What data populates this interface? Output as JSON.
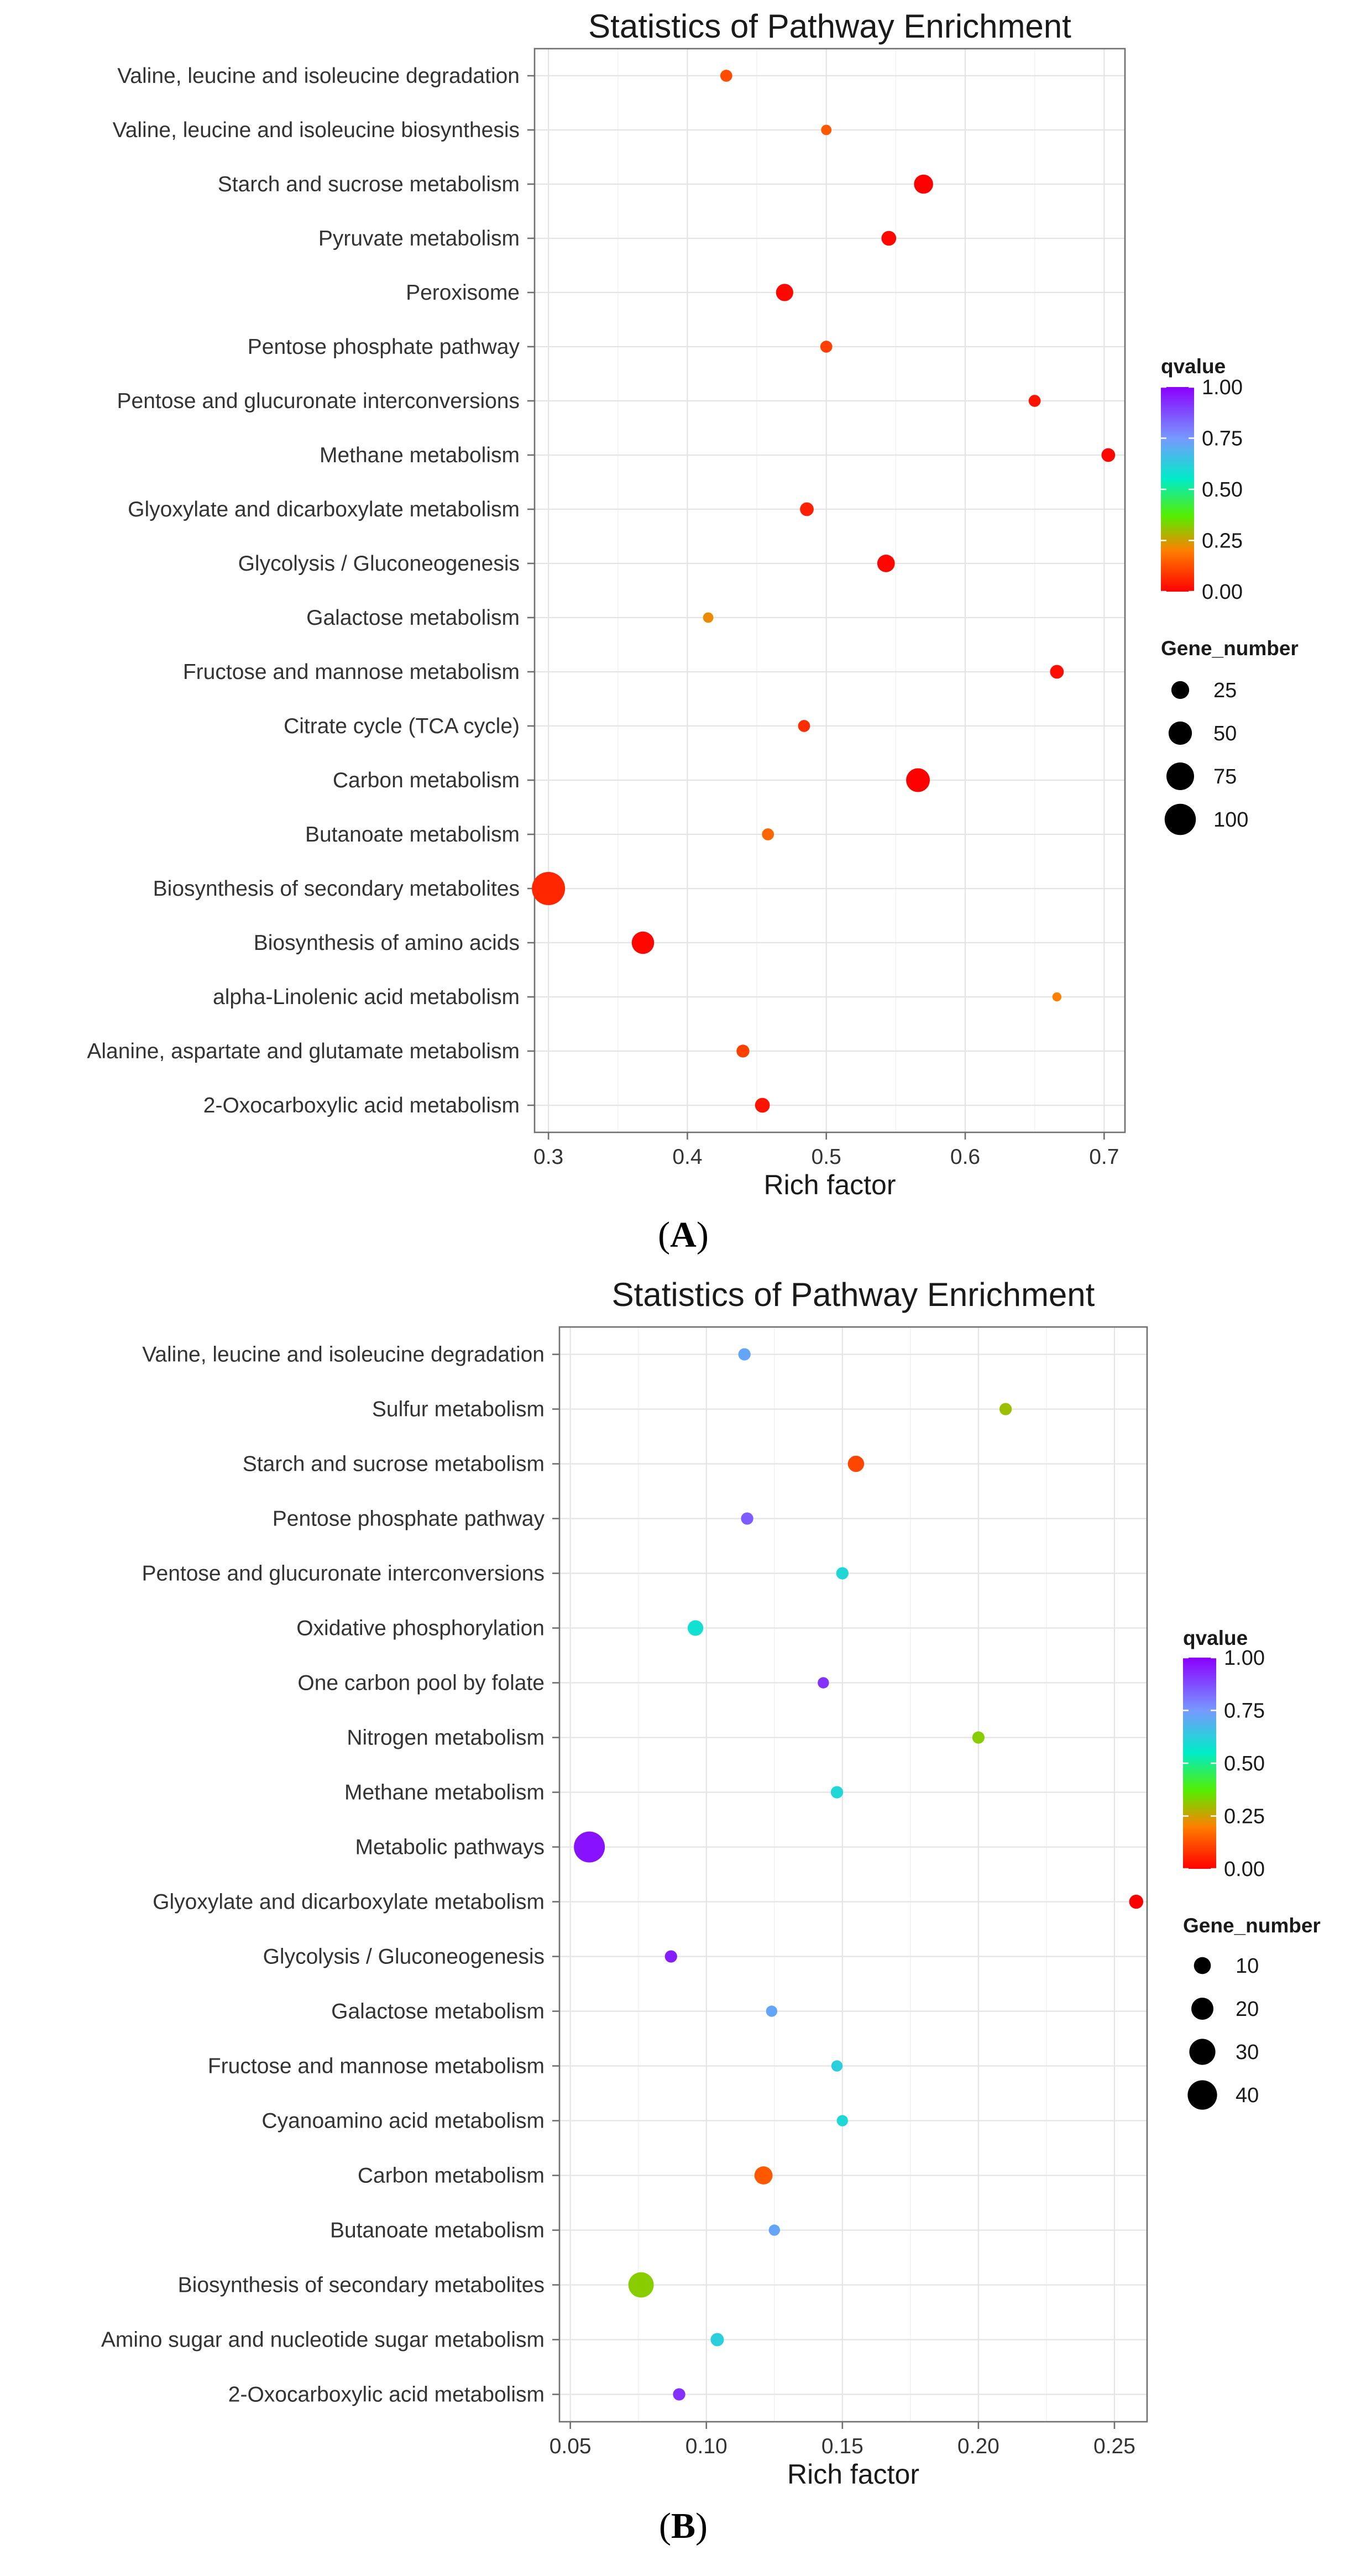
{
  "chart_data": [
    {
      "type": "scatter",
      "title": "Statistics of Pathway Enrichment",
      "xlabel": "Rich factor",
      "xlim": [
        0.29,
        0.715
      ],
      "xticks": [
        0.3,
        0.4,
        0.5,
        0.6,
        0.7
      ],
      "xtick_labels": [
        "0.3",
        "0.4",
        "0.5",
        "0.6",
        "0.7"
      ],
      "color_legend": {
        "title": "qvalue",
        "range": [
          0,
          1
        ],
        "labels": [
          "1.00",
          "0.75",
          "0.50",
          "0.25",
          "0.00"
        ]
      },
      "size_legend": {
        "title": "Gene_number",
        "values": [
          25,
          50,
          75,
          100
        ],
        "labels": [
          "25",
          "50",
          "75",
          "100"
        ]
      },
      "panel_label": "A",
      "points": [
        {
          "pathway": "Valine, leucine and isoleucine degradation",
          "rich_factor": 0.428,
          "qvalue": 0.12,
          "gene_number": 8
        },
        {
          "pathway": "Valine, leucine and isoleucine biosynthesis",
          "rich_factor": 0.5,
          "qvalue": 0.14,
          "gene_number": 5
        },
        {
          "pathway": "Starch and sucrose metabolism",
          "rich_factor": 0.57,
          "qvalue": 0.0,
          "gene_number": 30
        },
        {
          "pathway": "Pyruvate metabolism",
          "rich_factor": 0.545,
          "qvalue": 0.01,
          "gene_number": 15
        },
        {
          "pathway": "Peroxisome",
          "rich_factor": 0.47,
          "qvalue": 0.01,
          "gene_number": 23
        },
        {
          "pathway": "Pentose phosphate pathway",
          "rich_factor": 0.5,
          "qvalue": 0.1,
          "gene_number": 8
        },
        {
          "pathway": "Pentose and glucuronate interconversions",
          "rich_factor": 0.65,
          "qvalue": 0.03,
          "gene_number": 8
        },
        {
          "pathway": "Methane metabolism",
          "rich_factor": 0.703,
          "qvalue": 0.01,
          "gene_number": 12
        },
        {
          "pathway": "Glyoxylate and dicarboxylate metabolism",
          "rich_factor": 0.486,
          "qvalue": 0.05,
          "gene_number": 12
        },
        {
          "pathway": "Glycolysis / Gluconeogenesis",
          "rich_factor": 0.543,
          "qvalue": 0.01,
          "gene_number": 24
        },
        {
          "pathway": "Galactose metabolism",
          "rich_factor": 0.415,
          "qvalue": 0.22,
          "gene_number": 5
        },
        {
          "pathway": "Fructose and mannose metabolism",
          "rich_factor": 0.666,
          "qvalue": 0.02,
          "gene_number": 12
        },
        {
          "pathway": "Citrate cycle (TCA cycle)",
          "rich_factor": 0.484,
          "qvalue": 0.07,
          "gene_number": 8
        },
        {
          "pathway": "Carbon metabolism",
          "rich_factor": 0.566,
          "qvalue": 0.0,
          "gene_number": 52
        },
        {
          "pathway": "Butanoate metabolism",
          "rich_factor": 0.458,
          "qvalue": 0.16,
          "gene_number": 8
        },
        {
          "pathway": "Biosynthesis of secondary metabolites",
          "rich_factor": 0.3,
          "qvalue": 0.06,
          "gene_number": 115
        },
        {
          "pathway": "Biosynthesis of amino acids",
          "rich_factor": 0.368,
          "qvalue": 0.01,
          "gene_number": 45
        },
        {
          "pathway": "alpha-Linolenic acid metabolism",
          "rich_factor": 0.666,
          "qvalue": 0.2,
          "gene_number": 3
        },
        {
          "pathway": "Alanine, aspartate and glutamate metabolism",
          "rich_factor": 0.44,
          "qvalue": 0.1,
          "gene_number": 10
        },
        {
          "pathway": "2-Oxocarboxylic acid metabolism",
          "rich_factor": 0.454,
          "qvalue": 0.03,
          "gene_number": 15
        }
      ]
    },
    {
      "type": "scatter",
      "title": "Statistics of Pathway Enrichment",
      "xlabel": "Rich factor",
      "xlim": [
        0.046,
        0.262
      ],
      "xticks": [
        0.05,
        0.1,
        0.15,
        0.2,
        0.25
      ],
      "xtick_labels": [
        "0.05",
        "0.10",
        "0.15",
        "0.20",
        "0.25"
      ],
      "color_legend": {
        "title": "qvalue",
        "range": [
          0,
          1
        ],
        "labels": [
          "1.00",
          "0.75",
          "0.50",
          "0.25",
          "0.00"
        ]
      },
      "size_legend": {
        "title": "Gene_number",
        "values": [
          10,
          20,
          30,
          40
        ],
        "labels": [
          "10",
          "20",
          "30",
          "40"
        ]
      },
      "panel_label": "B",
      "points": [
        {
          "pathway": "Valine, leucine and isoleucine degradation",
          "rich_factor": 0.114,
          "qvalue": 0.72,
          "gene_number": 4
        },
        {
          "pathway": "Sulfur metabolism",
          "rich_factor": 0.21,
          "qvalue": 0.3,
          "gene_number": 4
        },
        {
          "pathway": "Starch and sucrose metabolism",
          "rich_factor": 0.155,
          "qvalue": 0.11,
          "gene_number": 9
        },
        {
          "pathway": "Pentose phosphate pathway",
          "rich_factor": 0.115,
          "qvalue": 0.85,
          "gene_number": 4
        },
        {
          "pathway": "Pentose and glucuronate interconversions",
          "rich_factor": 0.15,
          "qvalue": 0.6,
          "gene_number": 4
        },
        {
          "pathway": "Oxidative phosphorylation",
          "rich_factor": 0.096,
          "qvalue": 0.58,
          "gene_number": 8
        },
        {
          "pathway": "One carbon pool by folate",
          "rich_factor": 0.143,
          "qvalue": 0.92,
          "gene_number": 3
        },
        {
          "pathway": "Nitrogen metabolism",
          "rich_factor": 0.2,
          "qvalue": 0.32,
          "gene_number": 4
        },
        {
          "pathway": "Methane metabolism",
          "rich_factor": 0.148,
          "qvalue": 0.6,
          "gene_number": 4
        },
        {
          "pathway": "Metabolic pathways",
          "rich_factor": 0.057,
          "qvalue": 0.97,
          "gene_number": 45
        },
        {
          "pathway": "Glyoxylate and dicarboxylate metabolism",
          "rich_factor": 0.258,
          "qvalue": 0.0,
          "gene_number": 6
        },
        {
          "pathway": "Glycolysis / Gluconeogenesis",
          "rich_factor": 0.087,
          "qvalue": 0.95,
          "gene_number": 4
        },
        {
          "pathway": "Galactose metabolism",
          "rich_factor": 0.124,
          "qvalue": 0.72,
          "gene_number": 3
        },
        {
          "pathway": "Fructose and mannose metabolism",
          "rich_factor": 0.148,
          "qvalue": 0.62,
          "gene_number": 3
        },
        {
          "pathway": "Cyanoamino acid metabolism",
          "rich_factor": 0.15,
          "qvalue": 0.6,
          "gene_number": 3
        },
        {
          "pathway": "Carbon metabolism",
          "rich_factor": 0.121,
          "qvalue": 0.14,
          "gene_number": 12
        },
        {
          "pathway": "Butanoate metabolism",
          "rich_factor": 0.125,
          "qvalue": 0.72,
          "gene_number": 3
        },
        {
          "pathway": "Biosynthesis of secondary metabolites",
          "rich_factor": 0.076,
          "qvalue": 0.32,
          "gene_number": 28
        },
        {
          "pathway": "Amino sugar and nucleotide sugar metabolism",
          "rich_factor": 0.104,
          "qvalue": 0.62,
          "gene_number": 5
        },
        {
          "pathway": "2-Oxocarboxylic acid metabolism",
          "rich_factor": 0.09,
          "qvalue": 0.92,
          "gene_number": 4
        }
      ]
    }
  ]
}
